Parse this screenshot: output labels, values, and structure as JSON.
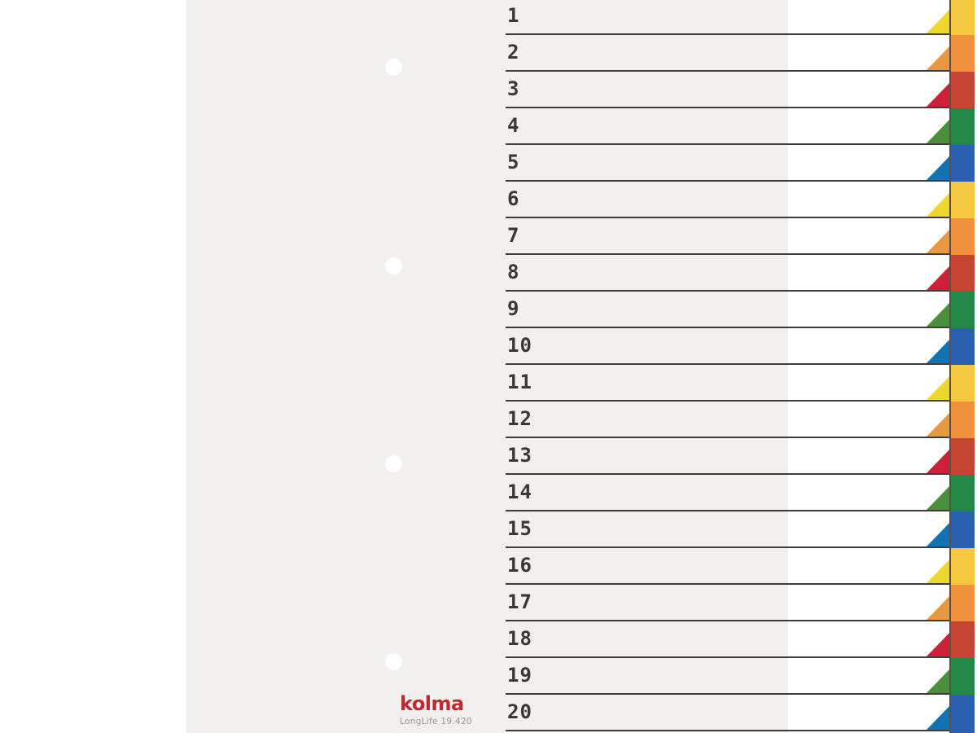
{
  "page": {
    "background": "#ffffff"
  },
  "sheet": {
    "background": "#f2f0ee",
    "hole_count": 4
  },
  "brand": {
    "name": "kolma",
    "model": "LongLife 19.420",
    "name_color": "#c3282f",
    "model_color": "#98948f"
  },
  "divider": {
    "line_color": "#403e3b",
    "number_color": "#3a3836",
    "edge_seam_color": "#56524d",
    "palette": {
      "yellow": {
        "strip": "#f4c93f",
        "corner": "#eed72e"
      },
      "orange": {
        "strip": "#f0913e",
        "corner": "#e8993f"
      },
      "red": {
        "strip": "#c64434",
        "corner": "#cc2139"
      },
      "green": {
        "strip": "#218848",
        "corner": "#4b8f3d"
      },
      "blue": {
        "strip": "#2b5fb0",
        "corner": "#1273b4"
      }
    },
    "tabs": [
      {
        "label": "1",
        "color": "yellow"
      },
      {
        "label": "2",
        "color": "orange"
      },
      {
        "label": "3",
        "color": "red"
      },
      {
        "label": "4",
        "color": "green"
      },
      {
        "label": "5",
        "color": "blue"
      },
      {
        "label": "6",
        "color": "yellow"
      },
      {
        "label": "7",
        "color": "orange"
      },
      {
        "label": "8",
        "color": "red"
      },
      {
        "label": "9",
        "color": "green"
      },
      {
        "label": "10",
        "color": "blue"
      },
      {
        "label": "11",
        "color": "yellow"
      },
      {
        "label": "12",
        "color": "orange"
      },
      {
        "label": "13",
        "color": "red"
      },
      {
        "label": "14",
        "color": "green"
      },
      {
        "label": "15",
        "color": "blue"
      },
      {
        "label": "16",
        "color": "yellow"
      },
      {
        "label": "17",
        "color": "orange"
      },
      {
        "label": "18",
        "color": "red"
      },
      {
        "label": "19",
        "color": "green"
      },
      {
        "label": "20",
        "color": "blue"
      }
    ]
  }
}
